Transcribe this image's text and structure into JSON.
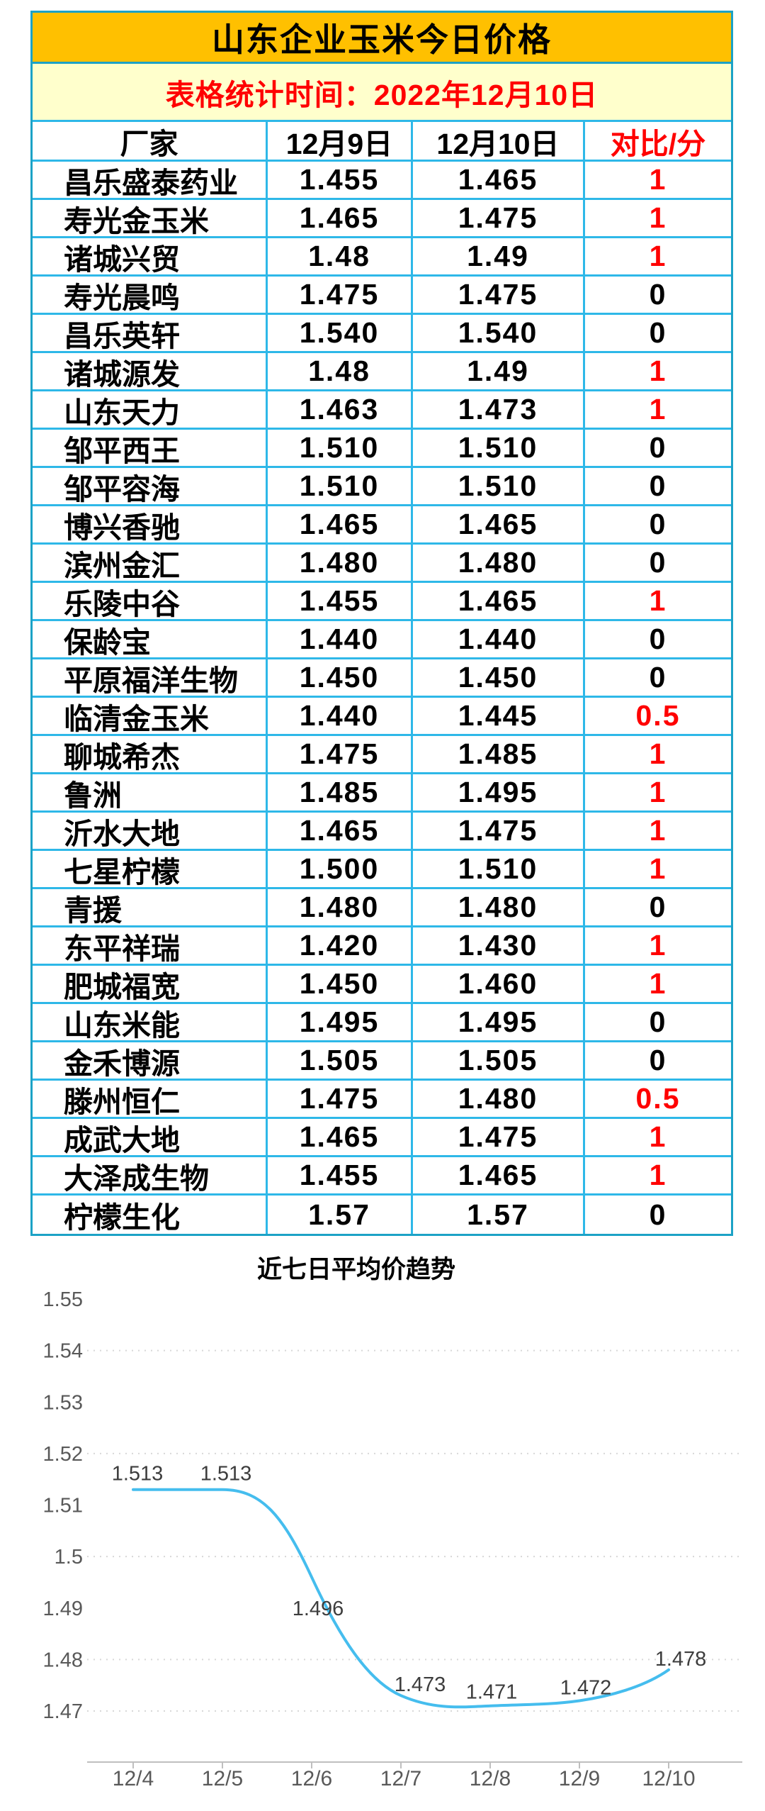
{
  "table": {
    "title": "山东企业玉米今日价格",
    "subtitle": "表格统计时间：2022年12月10日",
    "columns": [
      "厂家",
      "12月9日",
      "12月10日",
      "对比/分"
    ],
    "rows": [
      {
        "name": "昌乐盛泰药业",
        "dec9": "1.455",
        "dec10": "1.465",
        "diff": "1"
      },
      {
        "name": "寿光金玉米",
        "dec9": "1.465",
        "dec10": "1.475",
        "diff": "1"
      },
      {
        "name": "诸城兴贸",
        "dec9": "1.48",
        "dec10": "1.49",
        "diff": "1"
      },
      {
        "name": "寿光晨鸣",
        "dec9": "1.475",
        "dec10": "1.475",
        "diff": "0"
      },
      {
        "name": "昌乐英轩",
        "dec9": "1.540",
        "dec10": "1.540",
        "diff": "0"
      },
      {
        "name": "诸城源发",
        "dec9": "1.48",
        "dec10": "1.49",
        "diff": "1"
      },
      {
        "name": "山东天力",
        "dec9": "1.463",
        "dec10": "1.473",
        "diff": "1"
      },
      {
        "name": "邹平西王",
        "dec9": "1.510",
        "dec10": "1.510",
        "diff": "0"
      },
      {
        "name": "邹平容海",
        "dec9": "1.510",
        "dec10": "1.510",
        "diff": "0"
      },
      {
        "name": "博兴香驰",
        "dec9": "1.465",
        "dec10": "1.465",
        "diff": "0"
      },
      {
        "name": "滨州金汇",
        "dec9": "1.480",
        "dec10": "1.480",
        "diff": "0"
      },
      {
        "name": "乐陵中谷",
        "dec9": "1.455",
        "dec10": "1.465",
        "diff": "1"
      },
      {
        "name": "保龄宝",
        "dec9": "1.440",
        "dec10": "1.440",
        "diff": "0"
      },
      {
        "name": "平原福洋生物",
        "dec9": "1.450",
        "dec10": "1.450",
        "diff": "0"
      },
      {
        "name": "临清金玉米",
        "dec9": "1.440",
        "dec10": "1.445",
        "diff": "0.5"
      },
      {
        "name": "聊城希杰",
        "dec9": "1.475",
        "dec10": "1.485",
        "diff": "1"
      },
      {
        "name": "鲁洲",
        "dec9": "1.485",
        "dec10": "1.495",
        "diff": "1"
      },
      {
        "name": "沂水大地",
        "dec9": "1.465",
        "dec10": "1.475",
        "diff": "1"
      },
      {
        "name": "七星柠檬",
        "dec9": "1.500",
        "dec10": "1.510",
        "diff": "1"
      },
      {
        "name": "青援",
        "dec9": "1.480",
        "dec10": "1.480",
        "diff": "0"
      },
      {
        "name": "东平祥瑞",
        "dec9": "1.420",
        "dec10": "1.430",
        "diff": "1"
      },
      {
        "name": "肥城福宽",
        "dec9": "1.450",
        "dec10": "1.460",
        "diff": "1"
      },
      {
        "name": "山东米能",
        "dec9": "1.495",
        "dec10": "1.495",
        "diff": "0"
      },
      {
        "name": "金禾博源",
        "dec9": "1.505",
        "dec10": "1.505",
        "diff": "0"
      },
      {
        "name": "滕州恒仁",
        "dec9": "1.475",
        "dec10": "1.480",
        "diff": "0.5"
      },
      {
        "name": "成武大地",
        "dec9": "1.465",
        "dec10": "1.475",
        "diff": "1"
      },
      {
        "name": "大泽成生物",
        "dec9": "1.455",
        "dec10": "1.465",
        "diff": "1"
      },
      {
        "name": "柠檬生化",
        "dec9": "1.57",
        "dec10": "1.57",
        "diff": "0"
      }
    ]
  },
  "chart_data": {
    "type": "line",
    "title": "近七日平均价趋势",
    "categories": [
      "12/4",
      "12/5",
      "12/6",
      "12/7",
      "12/8",
      "12/9",
      "12/10"
    ],
    "values": [
      1.513,
      1.513,
      1.496,
      1.473,
      1.471,
      1.472,
      1.478
    ],
    "data_labels": [
      "1.513",
      "1.513",
      "1.496",
      "1.473",
      "1.471",
      "1.472",
      "1.478"
    ],
    "y_ticks": [
      "1.55",
      "1.54",
      "1.53",
      "1.52",
      "1.51",
      "1.5",
      "1.49",
      "1.48",
      "1.47"
    ],
    "grid_at": [
      "1.54",
      "1.52",
      "1.5",
      "1.48",
      "1.47"
    ],
    "ylim": [
      1.47,
      1.55
    ],
    "xlabel": "",
    "ylabel": "",
    "grid": "dotted-horizontal",
    "legend": "none",
    "line_color": "#45BDEE"
  },
  "colors": {
    "gold": "#FFC000",
    "pale_yellow": "#FFFFCC",
    "red": "#FF0000",
    "border": "#2EB8E8",
    "border_dark": "#1CA2C6",
    "line_blue": "#45BDEE",
    "grid_gray": "#D8D8D8",
    "axis_gray": "#BFBFBF",
    "tick_label_gray": "#595959",
    "data_label_gray": "#3D3D3D"
  }
}
